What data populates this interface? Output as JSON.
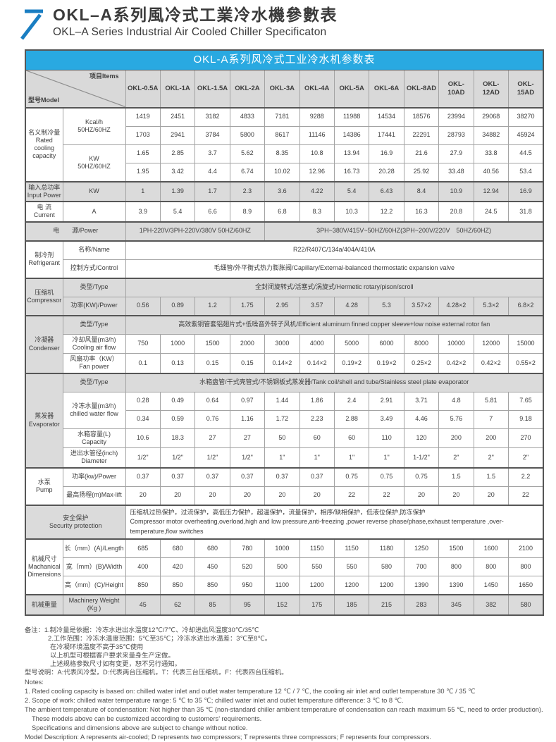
{
  "colors": {
    "accent_blue": "#29a9e1",
    "header_gray": "#d9d9d9",
    "logo_blue": "#1a7ec2"
  },
  "page": {
    "title_zh": "OKL–A系列風冷式工業冷水機參數表",
    "title_en": "OKL–A Series Industrial Air Cooled Chiller Specificaton"
  },
  "table": {
    "caption": "OKL-A系列风冷式工业冷水机参数表",
    "corner": {
      "model": "型号Model",
      "items": "项目Items"
    },
    "models": [
      "OKL-0.5A",
      "OKL-1A",
      "OKL-1.5A",
      "OKL-2A",
      "OKL-3A",
      "OKL-4A",
      "OKL-5A",
      "OKL-6A",
      "OKL-8AD",
      "OKL-10AD",
      "OKL-12AD",
      "OKL-15AD"
    ],
    "rows": [
      {
        "sep": true,
        "group": {
          "text": "名义制冷量\nRated\ncooling\ncapacity",
          "span": 4
        },
        "item": {
          "text": "Kcal/h\n50HZ/60HZ",
          "span": 2
        },
        "values": [
          "1419",
          "2451",
          "3182",
          "4833",
          "7181",
          "9288",
          "11988",
          "14534",
          "18576",
          "23994",
          "29068",
          "38270"
        ]
      },
      {
        "values": [
          "1703",
          "2941",
          "3784",
          "5800",
          "8617",
          "11146",
          "14386",
          "17441",
          "22291",
          "28793",
          "34882",
          "45924"
        ]
      },
      {
        "item": {
          "text": "KW\n50HZ/60HZ",
          "span": 2
        },
        "values": [
          "1.65",
          "2.85",
          "3.7",
          "5.62",
          "8.35",
          "10.8",
          "13.94",
          "16.9",
          "21.6",
          "27.9",
          "33.8",
          "44.5"
        ]
      },
      {
        "values": [
          "1.95",
          "3.42",
          "4.4",
          "6.74",
          "10.02",
          "12.96",
          "16.73",
          "20.28",
          "25.92",
          "33.48",
          "40.56",
          "53.4"
        ]
      },
      {
        "sep": true,
        "shade": true,
        "group": {
          "text": "输入总功率\nInput Power",
          "span": 1
        },
        "item": {
          "text": "KW",
          "span": 1
        },
        "values": [
          "1",
          "1.39",
          "1.7",
          "2.3",
          "3.6",
          "4.22",
          "5.4",
          "6.43",
          "8.4",
          "10.9",
          "12.94",
          "16.9"
        ]
      },
      {
        "sep": true,
        "group": {
          "text": "电 流\nCurrent",
          "span": 1
        },
        "item": {
          "text": "A",
          "span": 1
        },
        "values": [
          "3.9",
          "5.4",
          "6.6",
          "8.9",
          "6.8",
          "8.3",
          "10.3",
          "12.2",
          "16.3",
          "20.8",
          "24.5",
          "31.8"
        ]
      },
      {
        "sep": true,
        "shade": true,
        "label2": "电　　源/Power",
        "spans": [
          {
            "text": "1PH-220V/3PH-220V/380V 50HZ/60HZ",
            "span": 4
          },
          {
            "text": "3PH~380V/415V~50HZ/60HZ(3PH~200V/220V　50HZ/60HZ)",
            "span": 8
          }
        ]
      },
      {
        "sep": true,
        "group": {
          "text": "制冷剂\nRefrigerant",
          "span": 2
        },
        "item": {
          "text": "名称/Name",
          "span": 1
        },
        "spans": [
          {
            "text": "R22/R407C/134a/404A/410A",
            "span": 12
          }
        ]
      },
      {
        "item": {
          "text": "控制方式/Control",
          "span": 1
        },
        "spans": [
          {
            "text": "毛细管/外平衡式热力膨胀阀/Capillary/External-balanced thermostatic expansion valve",
            "span": 12
          }
        ]
      },
      {
        "sep": true,
        "shade": true,
        "group": {
          "text": "压缩机\nCompressor",
          "span": 2
        },
        "item": {
          "text": "类型/Type",
          "span": 1
        },
        "spans": [
          {
            "text": "全封闭旋转式/活塞式/涡旋式/Hermetic rotary/pison/scroll",
            "span": 12
          }
        ]
      },
      {
        "shade": true,
        "item": {
          "text": "功率(KW)/Power",
          "span": 1
        },
        "values": [
          "0.56",
          "0.89",
          "1.2",
          "1.75",
          "2.95",
          "3.57",
          "4.28",
          "5.3",
          "3.57×2",
          "4.28×2",
          "5.3×2",
          "6.8×2"
        ]
      },
      {
        "sep": true,
        "shade": true,
        "group": {
          "text": "冷凝器\nCondenser",
          "span": 3
        },
        "item": {
          "text": "类型/Type",
          "span": 1
        },
        "spans": [
          {
            "text": "高效紫铜管套铝翅片式+低噪音外转子风机/Efficient aluminum finned copper sleeve+low noise external rotor fan",
            "span": 12
          }
        ]
      },
      {
        "item": {
          "text": "冷却风量(m3/h)\nCooling air flow",
          "span": 1
        },
        "values": [
          "750",
          "1000",
          "1500",
          "2000",
          "3000",
          "4000",
          "5000",
          "6000",
          "8000",
          "10000",
          "12000",
          "15000"
        ]
      },
      {
        "item": {
          "text": "风扇功率（KW）\nFan power",
          "span": 1
        },
        "values": [
          "0.1",
          "0.13",
          "0.15",
          "0.15",
          "0.14×2",
          "0.14×2",
          "0.19×2",
          "0.19×2",
          "0.25×2",
          "0.42×2",
          "0.42×2",
          "0.55×2"
        ]
      },
      {
        "sep": true,
        "shade": true,
        "group": {
          "text": "蒸发器\nEvaporator",
          "span": 5
        },
        "item": {
          "text": "类型/Type",
          "span": 1
        },
        "spans": [
          {
            "text": "水箱盘管/干式壳管式/不锈钢板式蒸发器/Tank coil/shell and tube/Stainless steel plate evaporator",
            "span": 12
          }
        ]
      },
      {
        "item": {
          "text": "冷冻水量(m3/h)\nchilled water flow",
          "span": 2
        },
        "values": [
          "0.28",
          "0.49",
          "0.64",
          "0.97",
          "1.44",
          "1.86",
          "2.4",
          "2.91",
          "3.71",
          "4.8",
          "5.81",
          "7.65"
        ]
      },
      {
        "values": [
          "0.34",
          "0.59",
          "0.76",
          "1.16",
          "1.72",
          "2.23",
          "2.88",
          "3.49",
          "4.46",
          "5.76",
          "7",
          "9.18"
        ]
      },
      {
        "item": {
          "text": "水箱容量(L)\nCapacity",
          "span": 1
        },
        "values": [
          "10.6",
          "18.3",
          "27",
          "27",
          "50",
          "60",
          "60",
          "110",
          "120",
          "200",
          "200",
          "270"
        ]
      },
      {
        "item": {
          "text": "进出水管径(inch)\nDiameter",
          "span": 1
        },
        "values": [
          "1/2\"",
          "1/2\"",
          "1/2\"",
          "1/2\"",
          "1\"",
          "1\"",
          "1\"",
          "1\"",
          "1-1/2\"",
          "2\"",
          "2\"",
          "2\""
        ]
      },
      {
        "sep": true,
        "group": {
          "text": "水泵\nPump",
          "span": 2
        },
        "item": {
          "text": "功率(kw)/Power",
          "span": 1
        },
        "values": [
          "0.37",
          "0.37",
          "0.37",
          "0.37",
          "0.37",
          "0.37",
          "0.75",
          "0.75",
          "0.75",
          "1.5",
          "1.5",
          "2.2"
        ]
      },
      {
        "item": {
          "text": "最高扬程(m)Max-lift",
          "span": 1
        },
        "values": [
          "20",
          "20",
          "20",
          "20",
          "20",
          "20",
          "22",
          "22",
          "20",
          "20",
          "20",
          "22"
        ]
      },
      {
        "sep": true,
        "label2": "安全保护\nSecurity protection",
        "labelShade": true,
        "spans": [
          {
            "align": "left",
            "span": 12,
            "text": "压缩机过热保护，过流保护，高低压力保护，超温保护，流量保护，相序/缺相保护，低液位保护,防冻保护\nCompressor motor overheating,overload,high and low pressure,anti-freezing ,power reverse phase/phase,exhaust temperature ,over-\ntemperature,flow switches"
          }
        ]
      },
      {
        "sep": true,
        "group": {
          "text": "机械尺寸\nMachanical\nDimensions",
          "span": 3
        },
        "item": {
          "text": "长（mm）(A)/Length",
          "span": 1
        },
        "values": [
          "685",
          "680",
          "680",
          "780",
          "1000",
          "1150",
          "1150",
          "1180",
          "1250",
          "1500",
          "1600",
          "2100"
        ]
      },
      {
        "item": {
          "text": "宽（mm）(B)/Width",
          "span": 1
        },
        "values": [
          "400",
          "420",
          "450",
          "520",
          "500",
          "550",
          "550",
          "580",
          "700",
          "800",
          "800",
          "800"
        ]
      },
      {
        "item": {
          "text": "高（mm）(C)/Height",
          "span": 1
        },
        "values": [
          "850",
          "850",
          "850",
          "950",
          "1100",
          "1200",
          "1200",
          "1200",
          "1390",
          "1390",
          "1450",
          "1650"
        ]
      },
      {
        "sep": true,
        "shade": true,
        "group": {
          "text": "机械重量",
          "span": 1
        },
        "item": {
          "text": "Machinery Weight\n(Kg )",
          "span": 1
        },
        "values": [
          "45",
          "62",
          "85",
          "95",
          "152",
          "175",
          "185",
          "215",
          "283",
          "345",
          "382",
          "580"
        ]
      }
    ]
  },
  "notes_zh": [
    {
      "indent": 0,
      "text": "备注：1.制冷量是依据：冷冻水进出水温度12℃/7℃、冷却进出风温度30℃/35℃"
    },
    {
      "indent": 33,
      "text": "2.工作范围：冷冻水温度范围：5℃至35℃；冷冻水进出水温差：3℃至8℃。"
    },
    {
      "indent": 36,
      "text": "在冷凝环境温度不高于35℃使用"
    },
    {
      "indent": 36,
      "text": "以上机型可根据客户要求来量身生产定做。"
    },
    {
      "indent": 36,
      "text": "上述规格参数尺寸如有变更，恕不另行通知。"
    },
    {
      "indent": 0,
      "text": "型号说明：A:代表风冷型，D:代表两台压缩机，T：代表三台压缩机，F：代表四台压缩机。"
    }
  ],
  "notes_en": [
    {
      "indent": 0,
      "text": "Notes:"
    },
    {
      "indent": 0,
      "text": "1. Rated cooling capacity is based on: chilled water inlet and outlet water temperature 12 ℃ / 7 ℃, the cooling air inlet and outlet temperature 30 ℃ / 35 ℃"
    },
    {
      "indent": 0,
      "text": "2. Scope of work: chilled water temperature range: 5 ℃ to 35 ℃; chilled water inlet and outlet temperature difference: 3 ℃ to 8 ℃."
    },
    {
      "indent": 0,
      "text": "The ambient temperature of condensation: Not higher than 35 ℃ (non-standard chiller ambient temperature of condensation can reach maximum 55 ℃, need to order production)."
    },
    {
      "indent": 10,
      "text": "These models above can be customized according to customers’  requirements."
    },
    {
      "indent": 10,
      "text": "Specifications and dimensions above are subject to change without notice."
    },
    {
      "indent": 0,
      "text": "Model Description: A represents air-cooled; D represents two compressors; T represents three compressors; F represents four compressors."
    }
  ]
}
